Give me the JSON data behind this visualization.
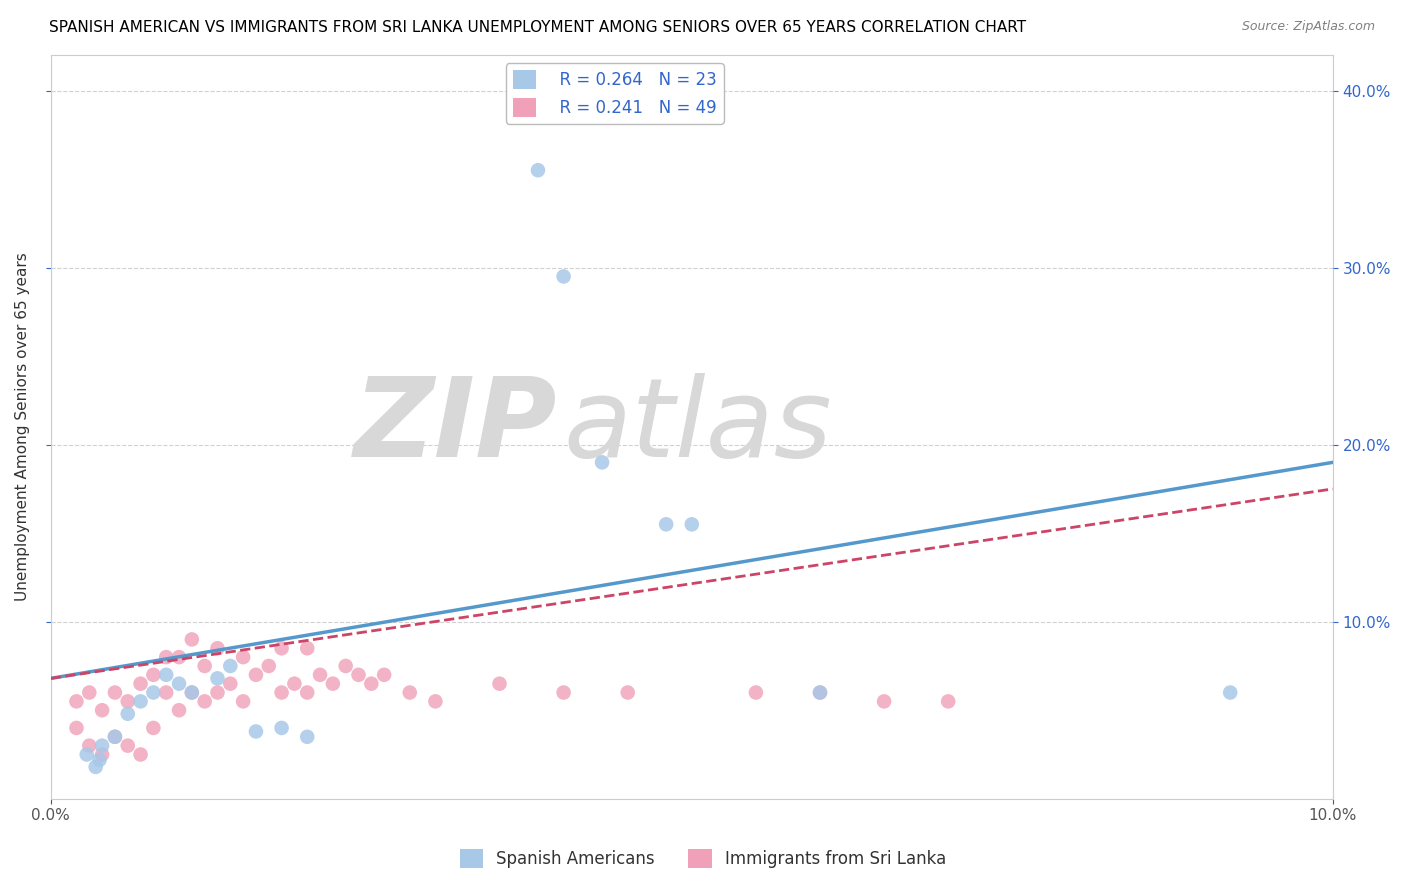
{
  "title": "SPANISH AMERICAN VS IMMIGRANTS FROM SRI LANKA UNEMPLOYMENT AMONG SENIORS OVER 65 YEARS CORRELATION CHART",
  "source": "Source: ZipAtlas.com",
  "ylabel": "Unemployment Among Seniors over 65 years",
  "xlabel": "",
  "xlim": [
    0,
    0.1
  ],
  "ylim": [
    0,
    0.42
  ],
  "xticks": [
    0.0,
    0.1
  ],
  "yticks": [
    0.1,
    0.2,
    0.3,
    0.4
  ],
  "blue_R": 0.264,
  "blue_N": 23,
  "pink_R": 0.241,
  "pink_N": 49,
  "blue_color": "#a8c8e8",
  "pink_color": "#f0a0b8",
  "blue_line_color": "#5599cc",
  "pink_line_color": "#cc4466",
  "background_color": "#ffffff",
  "grid_color": "#cccccc",
  "watermark_zip": "ZIP",
  "watermark_atlas": "atlas",
  "legend_label_blue": "Spanish Americans",
  "legend_label_pink": "Immigrants from Sri Lanka",
  "blue_scatter_x": [
    0.0028,
    0.0035,
    0.0038,
    0.004,
    0.005,
    0.006,
    0.007,
    0.008,
    0.009,
    0.01,
    0.011,
    0.013,
    0.014,
    0.016,
    0.018,
    0.02,
    0.038,
    0.04,
    0.043,
    0.048,
    0.05,
    0.06,
    0.092
  ],
  "blue_scatter_y": [
    0.025,
    0.018,
    0.022,
    0.03,
    0.035,
    0.048,
    0.055,
    0.06,
    0.07,
    0.065,
    0.06,
    0.068,
    0.075,
    0.038,
    0.04,
    0.035,
    0.355,
    0.295,
    0.19,
    0.155,
    0.155,
    0.06,
    0.06
  ],
  "pink_scatter_x": [
    0.002,
    0.002,
    0.003,
    0.003,
    0.004,
    0.004,
    0.005,
    0.005,
    0.006,
    0.006,
    0.007,
    0.007,
    0.008,
    0.008,
    0.009,
    0.009,
    0.01,
    0.01,
    0.011,
    0.011,
    0.012,
    0.012,
    0.013,
    0.013,
    0.014,
    0.015,
    0.015,
    0.016,
    0.017,
    0.018,
    0.018,
    0.019,
    0.02,
    0.02,
    0.021,
    0.022,
    0.023,
    0.024,
    0.025,
    0.026,
    0.028,
    0.03,
    0.035,
    0.04,
    0.045,
    0.055,
    0.06,
    0.065,
    0.07
  ],
  "pink_scatter_y": [
    0.04,
    0.055,
    0.03,
    0.06,
    0.025,
    0.05,
    0.035,
    0.06,
    0.03,
    0.055,
    0.025,
    0.065,
    0.04,
    0.07,
    0.06,
    0.08,
    0.05,
    0.08,
    0.06,
    0.09,
    0.055,
    0.075,
    0.06,
    0.085,
    0.065,
    0.055,
    0.08,
    0.07,
    0.075,
    0.06,
    0.085,
    0.065,
    0.06,
    0.085,
    0.07,
    0.065,
    0.075,
    0.07,
    0.065,
    0.07,
    0.06,
    0.055,
    0.065,
    0.06,
    0.06,
    0.06,
    0.06,
    0.055,
    0.055
  ],
  "blue_trend_x": [
    0.0,
    0.1
  ],
  "blue_trend_y": [
    0.068,
    0.19
  ],
  "pink_trend_x": [
    0.0,
    0.1
  ],
  "pink_trend_y": [
    0.068,
    0.175
  ],
  "title_fontsize": 11,
  "axis_label_fontsize": 11,
  "tick_fontsize": 11,
  "legend_fontsize": 12
}
